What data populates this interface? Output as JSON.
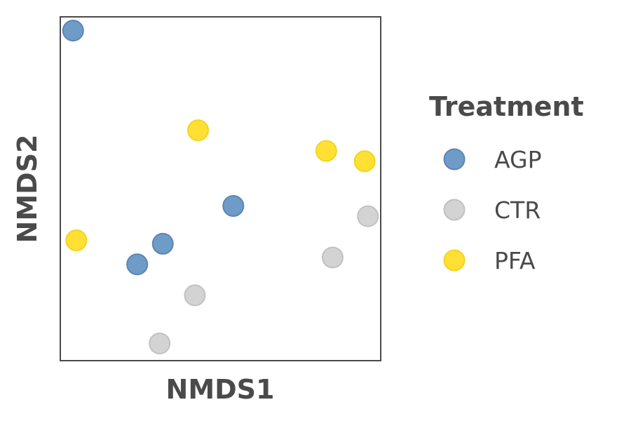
{
  "chart_data": {
    "type": "scatter",
    "xlabel": "NMDS1",
    "ylabel": "NMDS2",
    "xlim": [
      0,
      1
    ],
    "ylim": [
      0,
      1
    ],
    "ticks_shown": false,
    "grid": false,
    "legend": {
      "title": "Treatment",
      "placement": "right"
    },
    "series": [
      {
        "name": "AGP",
        "color": "#6f9bc7",
        "edge": "#5a86b4",
        "points": [
          {
            "x": 0.04,
            "y": 0.96
          },
          {
            "x": 0.54,
            "y": 0.45
          },
          {
            "x": 0.32,
            "y": 0.34
          },
          {
            "x": 0.24,
            "y": 0.28
          }
        ]
      },
      {
        "name": "CTR",
        "color": "#d3d3d3",
        "edge": "#c2c2c2",
        "points": [
          {
            "x": 0.96,
            "y": 0.42
          },
          {
            "x": 0.85,
            "y": 0.3
          },
          {
            "x": 0.42,
            "y": 0.19
          },
          {
            "x": 0.31,
            "y": 0.05
          }
        ]
      },
      {
        "name": "PFA",
        "color": "#ffe033",
        "edge": "#f5d320",
        "points": [
          {
            "x": 0.43,
            "y": 0.67
          },
          {
            "x": 0.83,
            "y": 0.61
          },
          {
            "x": 0.95,
            "y": 0.58
          },
          {
            "x": 0.05,
            "y": 0.35
          }
        ]
      }
    ]
  }
}
